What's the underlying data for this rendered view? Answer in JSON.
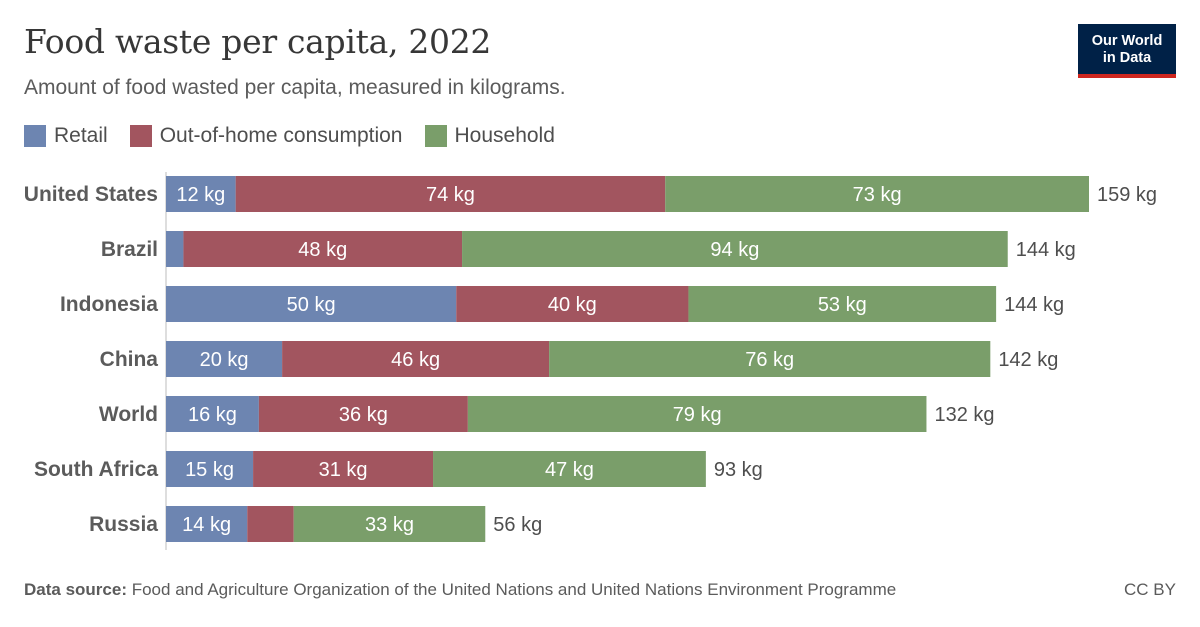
{
  "header": {
    "title": "Food waste per capita, 2022",
    "subtitle": "Amount of food wasted per capita, measured in kilograms.",
    "logo_line1": "Our World",
    "logo_line2": "in Data"
  },
  "legend": [
    {
      "label": "Retail",
      "color": "#6d85b1"
    },
    {
      "label": "Out-of-home consumption",
      "color": "#a2555f"
    },
    {
      "label": "Household",
      "color": "#7a9e6a"
    }
  ],
  "footer": {
    "source_label": "Data source:",
    "source_text": "Food and Agriculture Organization of the United Nations and United Nations Environment Programme",
    "license": "CC BY"
  },
  "chart_data": {
    "type": "bar",
    "orientation": "horizontal",
    "stacked": true,
    "title": "Food waste per capita, 2022",
    "unit": "kg",
    "categories": [
      "United States",
      "Brazil",
      "Indonesia",
      "China",
      "World",
      "South Africa",
      "Russia"
    ],
    "series": [
      {
        "name": "Retail",
        "color": "#6d85b1",
        "values": [
          12,
          3,
          50,
          20,
          16,
          15,
          14
        ],
        "labels": [
          "12 kg",
          "",
          "50 kg",
          "20 kg",
          "16 kg",
          "15 kg",
          "14 kg"
        ]
      },
      {
        "name": "Out-of-home consumption",
        "color": "#a2555f",
        "values": [
          74,
          48,
          40,
          46,
          36,
          31,
          8
        ],
        "labels": [
          "74 kg",
          "48 kg",
          "40 kg",
          "46 kg",
          "36 kg",
          "31 kg",
          ""
        ]
      },
      {
        "name": "Household",
        "color": "#7a9e6a",
        "values": [
          73,
          94,
          53,
          76,
          79,
          47,
          33
        ],
        "labels": [
          "73 kg",
          "94 kg",
          "53 kg",
          "76 kg",
          "79 kg",
          "47 kg",
          "33 kg"
        ]
      }
    ],
    "totals": [
      "159 kg",
      "144 kg",
      "144 kg",
      "142 kg",
      "132 kg",
      "93 kg",
      "56 kg"
    ],
    "xlim": [
      0,
      159
    ]
  }
}
